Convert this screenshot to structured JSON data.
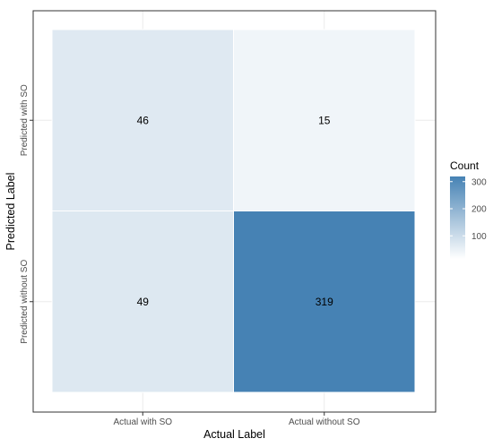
{
  "chart_data": {
    "type": "heatmap",
    "x_categories": [
      "Actual with SO",
      "Actual without SO"
    ],
    "y_categories": [
      "Predicted without SO",
      "Predicted with SO"
    ],
    "cells": [
      {
        "x": "Actual with SO",
        "y": "Predicted with SO",
        "value": 46
      },
      {
        "x": "Actual without SO",
        "y": "Predicted with SO",
        "value": 15
      },
      {
        "x": "Actual with SO",
        "y": "Predicted without SO",
        "value": 49
      },
      {
        "x": "Actual without SO",
        "y": "Predicted without SO",
        "value": 319
      }
    ],
    "xlabel": "Actual Label",
    "ylabel": "Predicted Label",
    "legend": {
      "title": "Count",
      "ticks": [
        100,
        200,
        300
      ],
      "range": [
        15,
        319
      ],
      "placement": "right"
    },
    "colors": {
      "low": "#ffffff",
      "high": "#4682b4",
      "panel_border": "#333333",
      "gridline": "#ebebeb"
    },
    "grid": true
  }
}
